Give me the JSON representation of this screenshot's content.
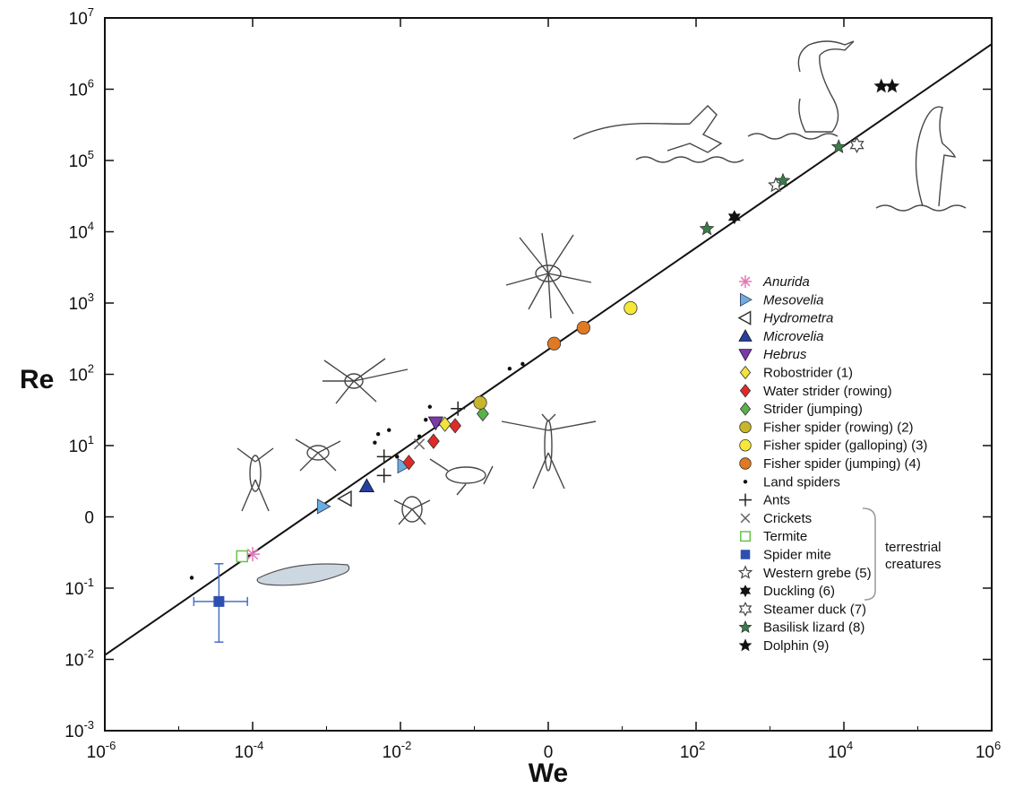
{
  "chart_data": {
    "type": "scatter",
    "xlabel": "We",
    "ylabel": "Re",
    "x_scale": "log",
    "y_scale": "log",
    "xlim": [
      1e-06,
      1000000.0
    ],
    "ylim": [
      0.001,
      10000000.0
    ],
    "x_ticks": [
      {
        "value": 1e-06,
        "base": "10",
        "exp": "-6"
      },
      {
        "value": 0.0001,
        "base": "10",
        "exp": "-4"
      },
      {
        "value": 0.01,
        "base": "10",
        "exp": "-2"
      },
      {
        "value": 1,
        "base": "0",
        "exp": ""
      },
      {
        "value": 100.0,
        "base": "10",
        "exp": "2"
      },
      {
        "value": 10000.0,
        "base": "10",
        "exp": "4"
      },
      {
        "value": 1000000.0,
        "base": "10",
        "exp": "6"
      }
    ],
    "y_ticks": [
      {
        "value": 0.001,
        "base": "10",
        "exp": "-3"
      },
      {
        "value": 0.01,
        "base": "10",
        "exp": "-2"
      },
      {
        "value": 0.1,
        "base": "10",
        "exp": "-1"
      },
      {
        "value": 1,
        "base": "0",
        "exp": ""
      },
      {
        "value": 10,
        "base": "10",
        "exp": "1"
      },
      {
        "value": 100,
        "base": "10",
        "exp": "2"
      },
      {
        "value": 1000,
        "base": "10",
        "exp": "3"
      },
      {
        "value": 10000,
        "base": "10",
        "exp": "4"
      },
      {
        "value": 100000,
        "base": "10",
        "exp": "5"
      },
      {
        "value": 1000000,
        "base": "10",
        "exp": "6"
      },
      {
        "value": 10000000,
        "base": "10",
        "exp": "7"
      }
    ],
    "fit_line": {
      "from": [
        1e-06,
        0.0115
      ],
      "to": [
        1000000.0,
        4300000
      ]
    },
    "legend_position": "right",
    "series": [
      {
        "name": "Anurida",
        "italic": true,
        "marker": "asterisk",
        "color": "#e377b6",
        "points": [
          [
            0.0001,
            0.3
          ]
        ]
      },
      {
        "name": "Mesovelia",
        "italic": true,
        "marker": "tri-right",
        "color": "#6aaee0",
        "points": [
          [
            0.0009,
            1.4
          ],
          [
            0.011,
            5.2
          ]
        ]
      },
      {
        "name": "Hydrometra",
        "italic": true,
        "marker": "tri-left-open",
        "color": "#333333",
        "points": [
          [
            0.0018,
            1.8
          ]
        ]
      },
      {
        "name": "Microvelia",
        "italic": true,
        "marker": "tri-up",
        "color": "#2540a0",
        "points": [
          [
            0.0035,
            2.7
          ]
        ]
      },
      {
        "name": "Hebrus",
        "italic": true,
        "marker": "tri-down",
        "color": "#7a3aa8",
        "points": [
          [
            0.03,
            21
          ]
        ]
      },
      {
        "name": "Robostrider (1)",
        "italic": false,
        "marker": "diamond",
        "color": "#f3e23a",
        "points": [
          [
            0.04,
            20
          ]
        ]
      },
      {
        "name": "Water strider (rowing)",
        "italic": false,
        "marker": "diamond",
        "color": "#e02a2a",
        "points": [
          [
            0.013,
            5.8
          ],
          [
            0.028,
            11.5
          ],
          [
            0.055,
            19
          ]
        ]
      },
      {
        "name": "Strider (jumping)",
        "italic": false,
        "marker": "diamond",
        "color": "#59b14a",
        "points": [
          [
            0.13,
            28
          ]
        ]
      },
      {
        "name": "Fisher spider (rowing) (2)",
        "italic": false,
        "marker": "circle",
        "color": "#c9b52a",
        "points": [
          [
            0.12,
            40
          ]
        ]
      },
      {
        "name": "Fisher spider (galloping) (3)",
        "italic": false,
        "marker": "circle",
        "color": "#f5e83a",
        "points": [
          [
            13,
            850
          ]
        ]
      },
      {
        "name": "Fisher spider (jumping) (4)",
        "italic": false,
        "marker": "circle",
        "color": "#e07a22",
        "points": [
          [
            1.2,
            270
          ],
          [
            3,
            450
          ]
        ]
      },
      {
        "name": "Land spiders",
        "italic": false,
        "marker": "dot",
        "color": "#111111",
        "points": [
          [
            1.5e-05,
            0.14
          ],
          [
            0.009,
            7
          ],
          [
            0.0045,
            11
          ],
          [
            0.005,
            14.5
          ],
          [
            0.007,
            16.5
          ],
          [
            0.022,
            23
          ],
          [
            0.025,
            35
          ],
          [
            0.018,
            13.5
          ],
          [
            0.3,
            120
          ],
          [
            0.45,
            140
          ]
        ]
      },
      {
        "name": "Ants",
        "italic": false,
        "marker": "plus",
        "color": "#222222",
        "points": [
          [
            0.006,
            3.8
          ],
          [
            0.006,
            7
          ],
          [
            0.06,
            33
          ]
        ]
      },
      {
        "name": "Crickets",
        "italic": false,
        "marker": "cross",
        "color": "#666666",
        "points": [
          [
            0.018,
            10.5
          ]
        ]
      },
      {
        "name": "Termite",
        "italic": false,
        "marker": "square-open",
        "color": "#6ac24a",
        "points": [
          [
            7.2e-05,
            0.28
          ]
        ]
      },
      {
        "name": "Spider mite",
        "italic": false,
        "marker": "square",
        "color": "#2d4fb0",
        "points": [
          [
            3.5e-05,
            0.065
          ]
        ],
        "x_err": [
          1.6e-05,
          8.5e-05
        ],
        "y_err": [
          0.0175,
          0.22
        ]
      },
      {
        "name": "Western grebe (5)",
        "italic": false,
        "marker": "star-open",
        "color": "#444444",
        "points": [
          [
            1200,
            45000
          ]
        ]
      },
      {
        "name": "Duckling (6)",
        "italic": false,
        "marker": "star6",
        "color": "#111111",
        "points": [
          [
            330,
            16000
          ]
        ]
      },
      {
        "name": "Steamer duck (7)",
        "italic": false,
        "marker": "star6-open",
        "color": "#444444",
        "points": [
          [
            15000,
            165000
          ]
        ]
      },
      {
        "name": "Basilisk lizard (8)",
        "italic": false,
        "marker": "star",
        "color": "#3d7a4a",
        "points": [
          [
            140,
            11000
          ],
          [
            1500,
            52000
          ],
          [
            8500,
            155000
          ]
        ]
      },
      {
        "name": "Dolphin (9)",
        "italic": false,
        "marker": "star",
        "color": "#111111",
        "points": [
          [
            32000,
            1100000
          ],
          [
            45000,
            1100000
          ]
        ]
      }
    ],
    "terrestrial_group_label": [
      "terrestrial",
      "creatures"
    ]
  }
}
